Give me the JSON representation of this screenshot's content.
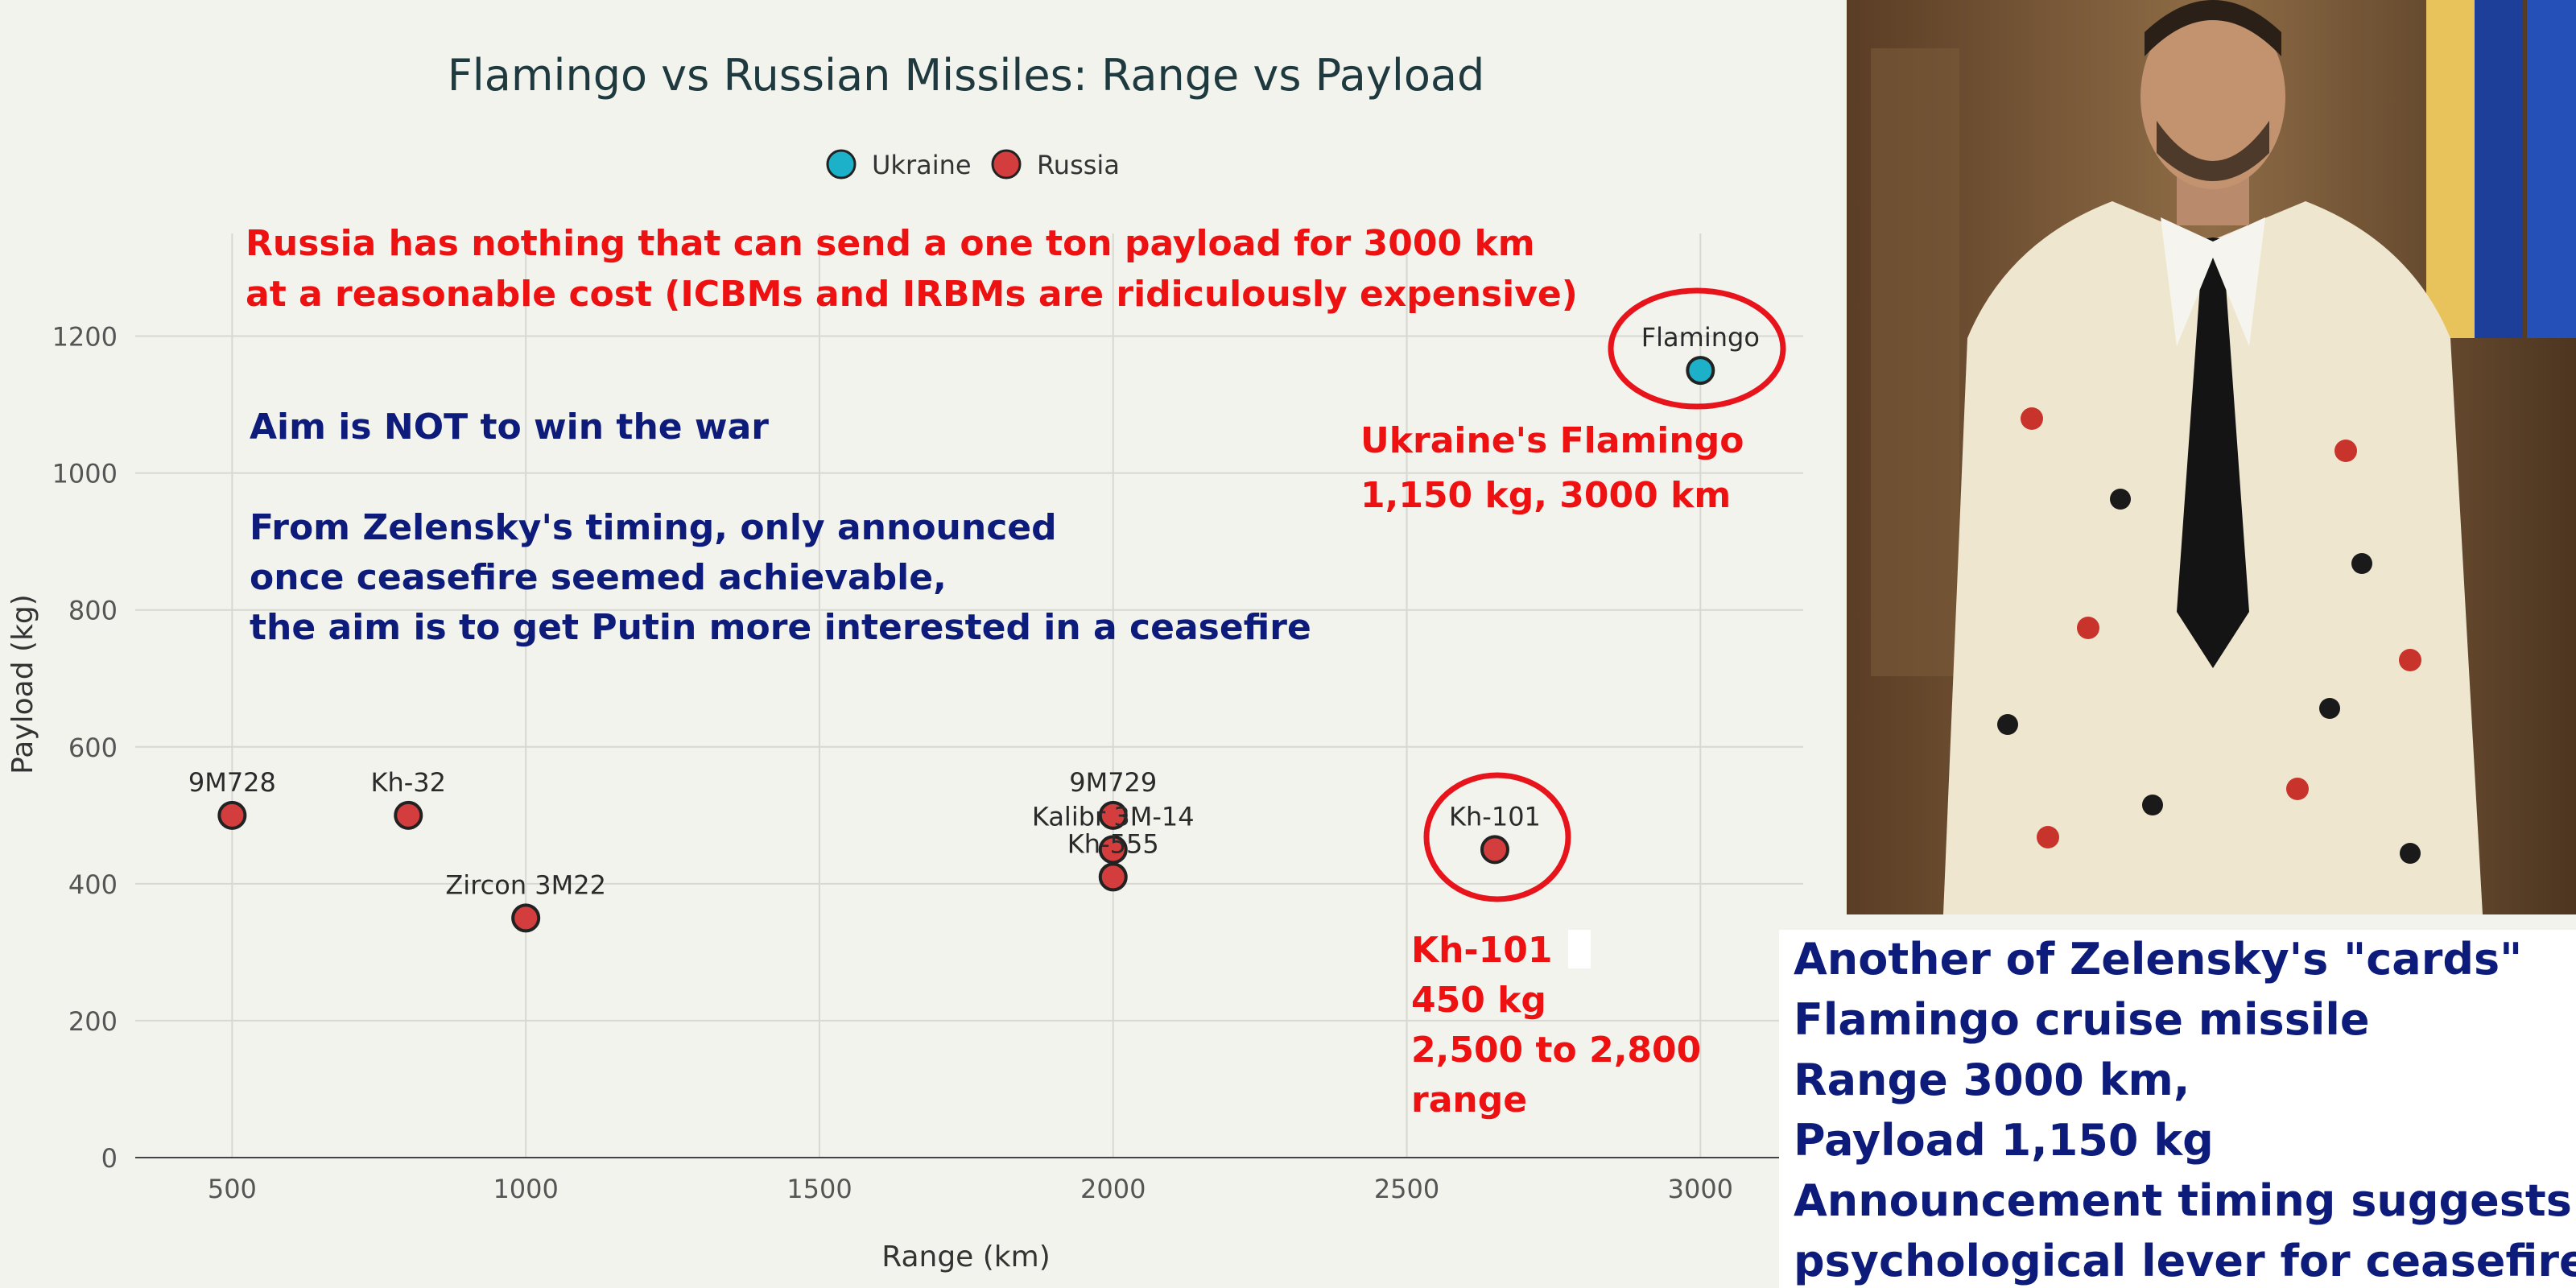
{
  "chart_data": {
    "type": "scatter",
    "title": "Flamingo vs Russian Missiles: Range vs Payload",
    "xlabel": "Range (km)",
    "ylabel": "Payload (kg)",
    "xlim": [
      335,
      3175
    ],
    "ylim": [
      0,
      1350
    ],
    "xticks": [
      500,
      1000,
      1500,
      2000,
      2500,
      3000
    ],
    "yticks": [
      0,
      200,
      400,
      600,
      800,
      1000,
      1200
    ],
    "grid": true,
    "legend_position": "top-center",
    "series": [
      {
        "name": "Ukraine",
        "color": "#1cb0c9",
        "points": [
          {
            "label": "Flamingo",
            "x": 3000,
            "y": 1150
          }
        ]
      },
      {
        "name": "Russia",
        "color": "#d43d3d",
        "points": [
          {
            "label": "9M728",
            "x": 500,
            "y": 500
          },
          {
            "label": "Kh-32",
            "x": 800,
            "y": 500
          },
          {
            "label": "Zircon 3M22",
            "x": 1000,
            "y": 350
          },
          {
            "label": "9M729",
            "x": 2000,
            "y": 500
          },
          {
            "label": "Kalibr 3M-14",
            "x": 2000,
            "y": 450
          },
          {
            "label": "Kh-555",
            "x": 2000,
            "y": 410
          },
          {
            "label": "Kh-101",
            "x": 2650,
            "y": 450
          }
        ]
      }
    ]
  },
  "annotations": {
    "russia_note": [
      "Russia has nothing that can send a one ton payload for 3000 km",
      "at a reasonable cost (ICBMs and IRBMs are ridiculously expensive)"
    ],
    "aim_note": "Aim is NOT to win the war",
    "timing_note": [
      "From Zelensky's timing, only announced",
      "once ceasefire seemed achievable,",
      "the aim is to get Putin more interested in a ceasefire"
    ],
    "flamingo_note": [
      "Ukraine's Flamingo",
      "1,150 kg, 3000 km"
    ],
    "kh101_note": [
      "Kh-101",
      "450 kg",
      "2,500 to 2,800",
      "range"
    ]
  },
  "caption": {
    "lines": [
      "Another of Zelensky's \"cards\"",
      "Flamingo cruise missile",
      "Range 3000 km,",
      "Payload 1,150 kg",
      "Announcement timing suggests",
      "psychological lever for ceasefire"
    ]
  },
  "colors": {
    "highlight_circle": "#e8141c",
    "annotation_red": "#ee1111",
    "annotation_navy": "#0d1b7a",
    "background": "#f3f3ee"
  }
}
